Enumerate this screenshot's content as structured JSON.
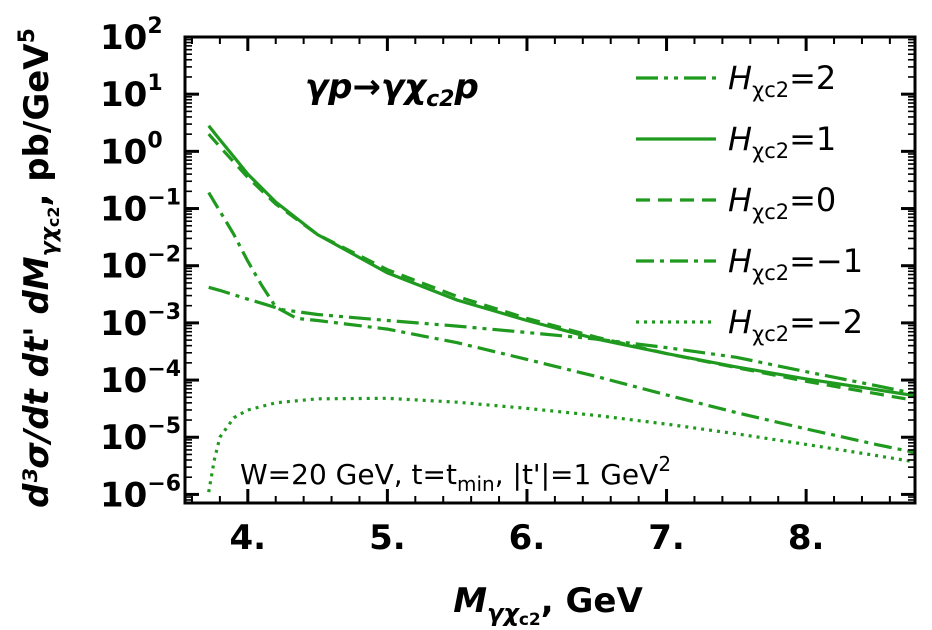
{
  "chart_data": {
    "type": "line",
    "color": "#1f9a1f",
    "process_label": {
      "main": "γp→γχ",
      "sub": "c2",
      "tail": "p"
    },
    "annotation": {
      "pre": "W=20 GeV, t=t",
      "sub": "min",
      "mid": ", |t'|=1 GeV",
      "sup": "2"
    },
    "xlabel": {
      "main": "M",
      "sub1": "γχ",
      "sub2": "c2",
      "tail": ", GeV"
    },
    "ylabel": {
      "text": "d³σ/dt dt' dM",
      "sub1": "γχ",
      "sub2": "c2",
      "tail": ", pb/GeV",
      "sup": "5"
    },
    "xlim": [
      3.55,
      8.78
    ],
    "ylim_log10": [
      -6.15,
      2
    ],
    "x_ticks": [
      {
        "value": 4,
        "label": "4."
      },
      {
        "value": 5,
        "label": "5."
      },
      {
        "value": 6,
        "label": "6."
      },
      {
        "value": 7,
        "label": "7."
      },
      {
        "value": 8,
        "label": "8."
      }
    ],
    "y_ticks": [
      {
        "exp": 2,
        "label": "10",
        "sup": "2"
      },
      {
        "exp": 1,
        "label": "10",
        "sup": "1"
      },
      {
        "exp": 0,
        "label": "10",
        "sup": "0"
      },
      {
        "exp": -1,
        "label": "10",
        "sup": "−1"
      },
      {
        "exp": -2,
        "label": "10",
        "sup": "−2"
      },
      {
        "exp": -3,
        "label": "10",
        "sup": "−3"
      },
      {
        "exp": -4,
        "label": "10",
        "sup": "−4"
      },
      {
        "exp": -5,
        "label": "10",
        "sup": "−5"
      },
      {
        "exp": -6,
        "label": "10",
        "sup": "−6"
      }
    ],
    "series": [
      {
        "name": "H",
        "sub": "χc2",
        "eq": "=2",
        "dash": "22,6,4,6,4,6",
        "x": [
          3.72,
          3.8,
          3.9,
          4.0,
          4.1,
          4.25,
          4.5,
          5.0,
          5.5,
          6.0,
          6.5,
          7.0,
          7.5,
          8.0,
          8.5,
          8.78
        ],
        "y": [
          0.0042,
          0.0037,
          0.0031,
          0.0026,
          0.0022,
          0.0017,
          0.0014,
          0.0011,
          0.00088,
          0.00068,
          0.00052,
          0.00037,
          0.00025,
          0.00014,
          8e-05,
          5.8e-05
        ]
      },
      {
        "name": "H",
        "sub": "χc2",
        "eq": "=1",
        "dash": "",
        "x": [
          3.72,
          3.8,
          3.9,
          4.0,
          4.2,
          4.5,
          5.0,
          5.5,
          6.0,
          6.5,
          7.0,
          7.5,
          8.0,
          8.5,
          8.78
        ],
        "y": [
          2.8,
          1.6,
          0.8,
          0.4,
          0.13,
          0.035,
          0.0075,
          0.0025,
          0.0011,
          0.00052,
          0.00029,
          0.00017,
          0.000105,
          6.8e-05,
          5.3e-05
        ]
      },
      {
        "name": "H",
        "sub": "χc2",
        "eq": "=0",
        "dash": "14,8",
        "x": [
          3.72,
          3.8,
          3.9,
          4.0,
          4.2,
          4.5,
          5.0,
          5.5,
          6.0,
          6.5,
          7.0,
          7.5,
          8.0,
          8.5,
          8.78
        ],
        "y": [
          2.0,
          1.2,
          0.65,
          0.35,
          0.12,
          0.035,
          0.0085,
          0.0029,
          0.0012,
          0.00056,
          0.00029,
          0.000165,
          9.5e-05,
          5.8e-05,
          4.4e-05
        ]
      },
      {
        "name": "H",
        "sub": "χc2",
        "eq": "=−1",
        "dash": "18,6,4,6",
        "x": [
          3.72,
          3.8,
          3.9,
          4.0,
          4.1,
          4.2,
          4.35,
          4.5,
          5.0,
          5.5,
          6.0,
          6.5,
          7.0,
          7.5,
          8.0,
          8.5,
          8.78
        ],
        "y": [
          0.19,
          0.09,
          0.035,
          0.012,
          0.0045,
          0.0019,
          0.0012,
          0.0011,
          0.00078,
          0.00045,
          0.00023,
          0.000115,
          5.5e-05,
          2.7e-05,
          1.4e-05,
          7.5e-06,
          5.4e-06
        ]
      },
      {
        "name": "H",
        "sub": "χc2",
        "eq": "=−2",
        "dash": "3,5",
        "x": [
          3.72,
          3.76,
          3.8,
          3.9,
          4.0,
          4.2,
          4.5,
          5.0,
          5.5,
          6.0,
          6.5,
          7.0,
          7.5,
          8.0,
          8.5,
          8.78
        ],
        "y": [
          1.1e-06,
          4e-06,
          1e-05,
          2.2e-05,
          3e-05,
          4e-05,
          4.7e-05,
          4.8e-05,
          4.1e-05,
          3.2e-05,
          2.4e-05,
          1.7e-05,
          1.15e-05,
          7.5e-06,
          4.8e-06,
          3.7e-06
        ]
      }
    ]
  }
}
